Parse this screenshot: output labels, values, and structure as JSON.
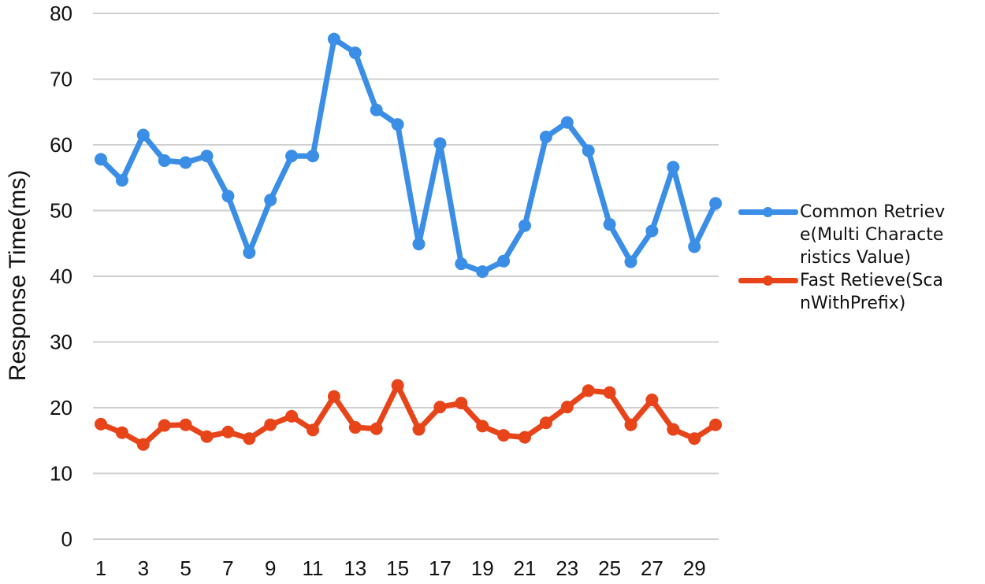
{
  "chart_data": {
    "type": "line",
    "title": "",
    "xlabel": "",
    "ylabel": "Response Time(ms)",
    "ylim": [
      0,
      80
    ],
    "yticks": [
      "0",
      "10",
      "20",
      "30",
      "40",
      "50",
      "60",
      "70",
      "80"
    ],
    "x": [
      1,
      2,
      3,
      4,
      5,
      6,
      7,
      8,
      9,
      10,
      11,
      12,
      13,
      14,
      15,
      16,
      17,
      18,
      19,
      20,
      21,
      22,
      23,
      24,
      25,
      26,
      27,
      28,
      29,
      30
    ],
    "xticks": [
      "1",
      "3",
      "5",
      "7",
      "9",
      "11",
      "13",
      "15",
      "17",
      "19",
      "21",
      "23",
      "25",
      "27",
      "29"
    ],
    "grid": true,
    "legend_position": "right",
    "series": [
      {
        "name": "Common Retrieve(Multi Characteristics Value)",
        "color": "#3a8ee6",
        "values": [
          57.8,
          54.6,
          61.5,
          57.6,
          57.3,
          58.3,
          52.2,
          43.6,
          51.6,
          58.3,
          58.3,
          76.1,
          74.0,
          65.3,
          63.1,
          44.9,
          60.2,
          41.9,
          40.7,
          42.3,
          47.7,
          61.2,
          63.4,
          59.1,
          47.9,
          42.2,
          46.9,
          56.6,
          44.5,
          51.1
        ]
      },
      {
        "name": "Fast Retieve(ScanWithPrefix)",
        "color": "#e8441a",
        "values": [
          17.5,
          16.2,
          14.4,
          17.3,
          17.4,
          15.6,
          16.3,
          15.3,
          17.4,
          18.7,
          16.6,
          21.7,
          17.0,
          16.8,
          23.4,
          16.7,
          20.1,
          20.7,
          17.2,
          15.8,
          15.5,
          17.7,
          20.1,
          22.6,
          22.3,
          17.4,
          21.2,
          16.7,
          15.3,
          17.4
        ]
      }
    ]
  }
}
